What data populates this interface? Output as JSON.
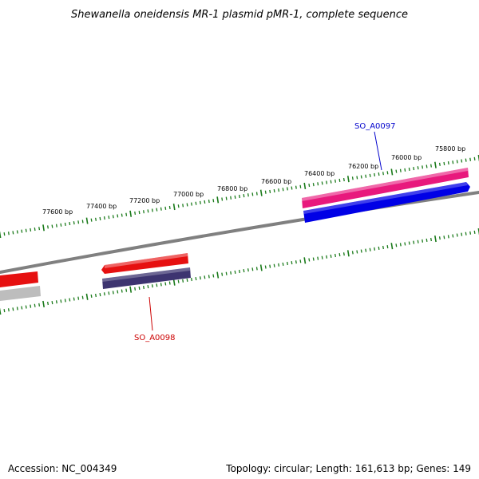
{
  "title": "Shewanella oneidensis MR-1 plasmid pMR-1, complete sequence",
  "colors": {
    "backbone": "#808080",
    "ticks": "#1a7a1a",
    "gene_forward_a": "#e8197d",
    "gene_forward_b": "#0000e6",
    "gene_reverse_a": "#e61010",
    "gene_reverse_b": "#3d3470",
    "gene_gray": "#bdbdbd",
    "label_forward": "#0000cc",
    "label_reverse": "#cc0000"
  },
  "scale": {
    "unit": "bp",
    "tick_labels": [
      "75800 bp",
      "76000 bp",
      "76200 bp",
      "76400 bp",
      "76600 bp",
      "76800 bp",
      "77000 bp",
      "77200 bp",
      "77400 bp",
      "77600 bp"
    ]
  },
  "genes": [
    {
      "label": "SO_A0097",
      "strand": "forward"
    },
    {
      "label": "SO_A0098",
      "strand": "reverse"
    }
  ],
  "footer": {
    "accession": "Accession: NC_004349",
    "stats": "Topology: circular; Length: 161,613 bp; Genes: 149"
  }
}
